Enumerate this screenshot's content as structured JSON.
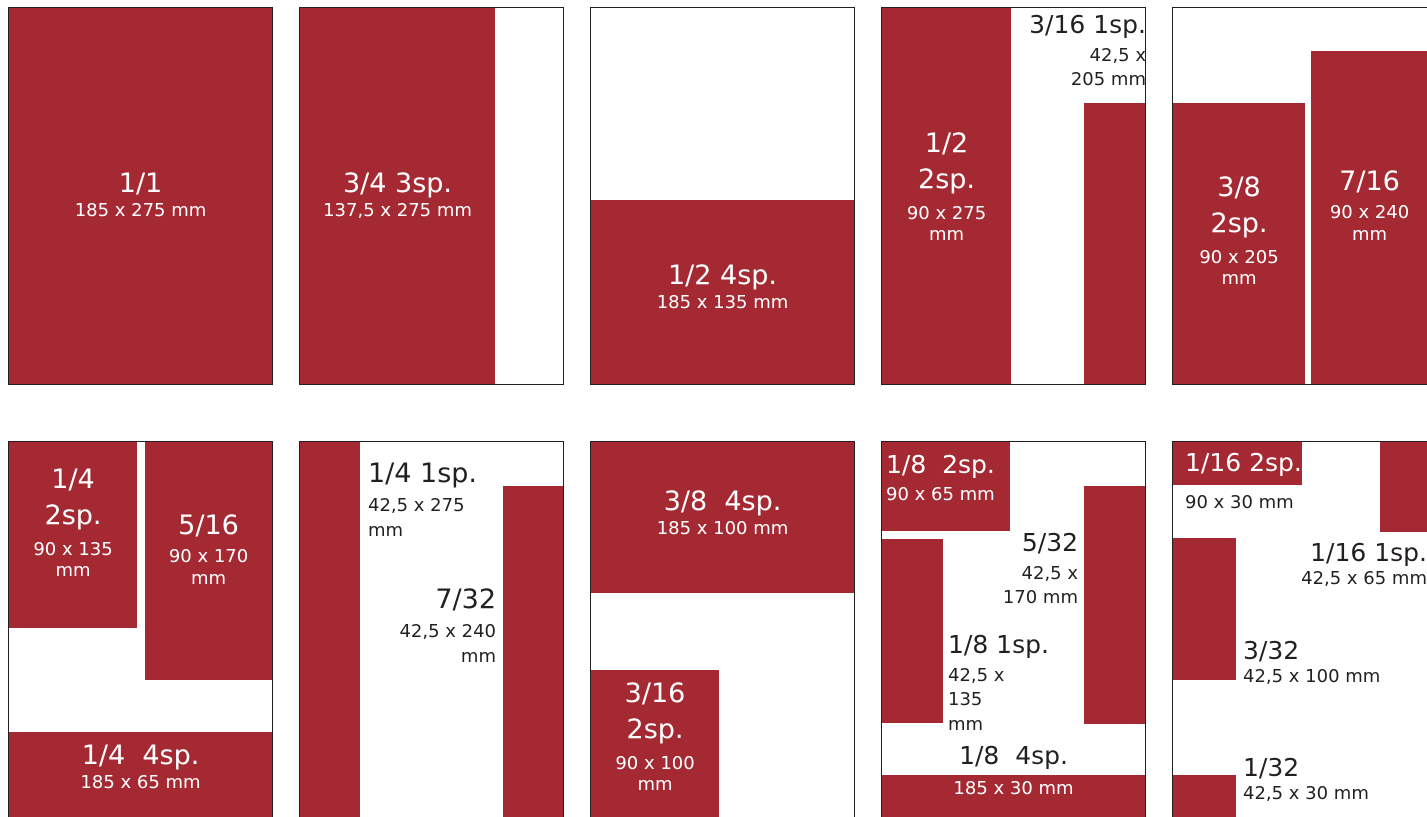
{
  "colors": {
    "ad_fill": "#a42932",
    "page_border": "#231f20",
    "page_bg": "#ffffff"
  },
  "pages": [
    {
      "items": [
        {
          "title": "1/1",
          "size": "185 x 275 mm"
        }
      ]
    },
    {
      "items": [
        {
          "title": "3/4 3sp.",
          "size": "137,5 x 275 mm"
        }
      ]
    },
    {
      "items": [
        {
          "title": "1/2 4sp.",
          "size": "185 x 135 mm"
        }
      ]
    },
    {
      "items": [
        {
          "title": "1/2 2sp.",
          "size": "90 x 275 mm"
        },
        {
          "title": "3/16 1sp.",
          "size": "42,5 x 205 mm"
        }
      ]
    },
    {
      "items": [
        {
          "title": "3/8 2sp.",
          "size": "90 x 205 mm"
        },
        {
          "title": "7/16",
          "size": "90 x 240 mm"
        }
      ]
    },
    {
      "items": [
        {
          "title": "1/4 2sp.",
          "size": "90 x 135 mm"
        },
        {
          "title": "5/16",
          "size": "90 x 170 mm"
        },
        {
          "title": "1/4  4sp.",
          "size": "185 x 65 mm"
        }
      ]
    },
    {
      "items": [
        {
          "title": "1/4 1sp.",
          "size": "42,5 x 275 mm"
        },
        {
          "title": "7/32",
          "size": "42,5 x 240 mm"
        }
      ]
    },
    {
      "items": [
        {
          "title": "3/8  4sp.",
          "size": "185 x 100 mm"
        },
        {
          "title": "3/16 2sp.",
          "size": "90 x 100 mm"
        }
      ]
    },
    {
      "items": [
        {
          "title": "1/8  2sp.",
          "size": "90 x 65 mm"
        },
        {
          "title": "5/32",
          "size": "42,5 x 170 mm"
        },
        {
          "title": "1/8 1sp.",
          "size": "42,5 x 135 mm"
        },
        {
          "title": "1/8  4sp.",
          "size": "185 x 30 mm"
        }
      ]
    },
    {
      "items": [
        {
          "title": "1/16 2sp.",
          "size": "90 x 30 mm"
        },
        {
          "title": "1/16 1sp.",
          "size": "42,5 x 65 mm"
        },
        {
          "title": "3/32",
          "size": "42,5 x 100 mm"
        },
        {
          "title": "1/32",
          "size": "42,5 x 30 mm"
        }
      ]
    }
  ]
}
